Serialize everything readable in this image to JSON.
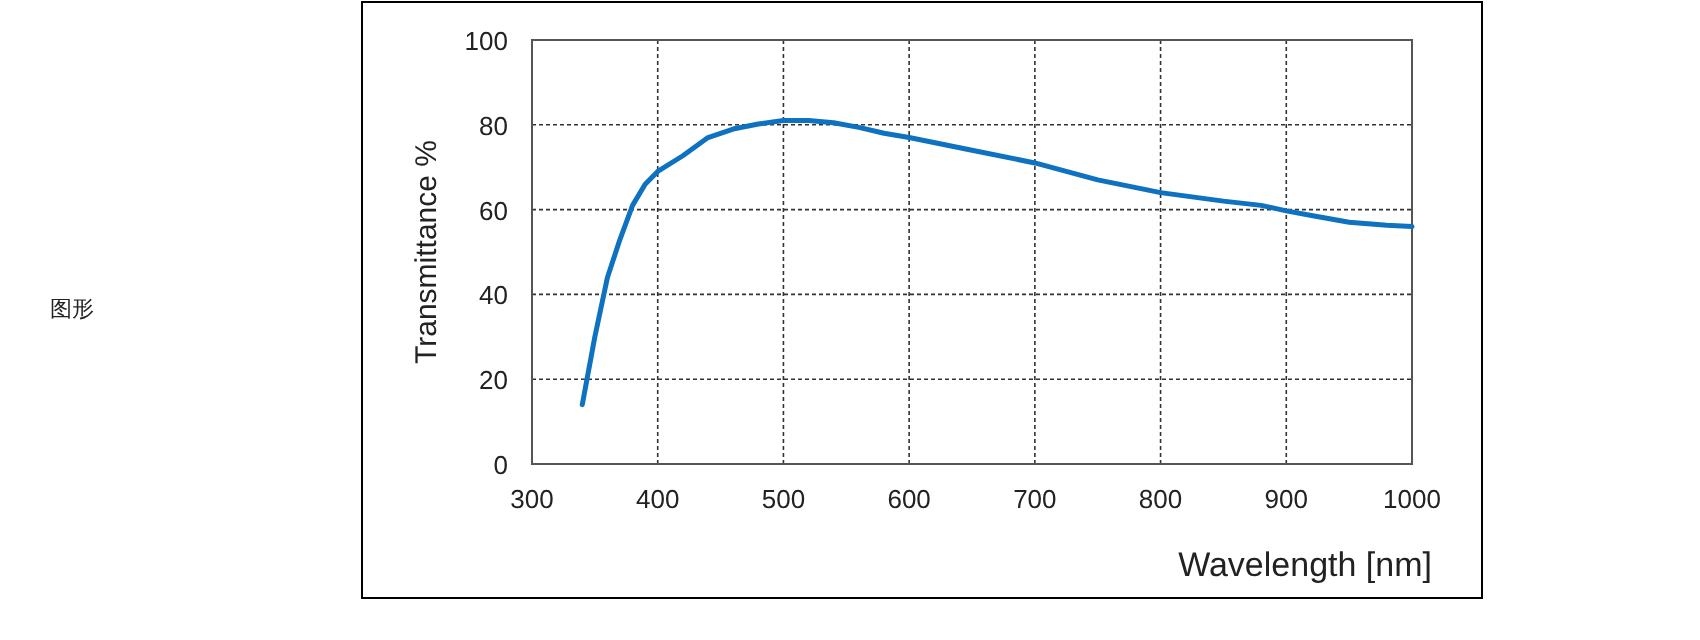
{
  "chart_data": {
    "type": "line",
    "xlabel": "Wavelength [nm]",
    "ylabel": "Transmittance %",
    "annotations": [
      "图形"
    ],
    "x": [
      340,
      350,
      360,
      370,
      380,
      390,
      400,
      420,
      440,
      460,
      480,
      500,
      520,
      540,
      560,
      580,
      600,
      650,
      700,
      750,
      800,
      850,
      880,
      900,
      920,
      950,
      980,
      1000
    ],
    "series": [
      {
        "color": "#0e72c0",
        "values": [
          14,
          30,
          44,
          53,
          61,
          66,
          69,
          72.7,
          77,
          79,
          80.2,
          81,
          81,
          80.5,
          79.4,
          78,
          77,
          74,
          71,
          67,
          64,
          62,
          61,
          59.7,
          58.6,
          57,
          56.3,
          56
        ]
      }
    ],
    "xlim": [
      300,
      1000
    ],
    "ylim": [
      0,
      100
    ],
    "xticks": [
      300,
      400,
      500,
      600,
      700,
      800,
      900,
      1000
    ],
    "yticks": [
      0,
      20,
      40,
      60,
      80,
      100
    ],
    "grid": true,
    "line_style": "solid",
    "marker": "none"
  }
}
